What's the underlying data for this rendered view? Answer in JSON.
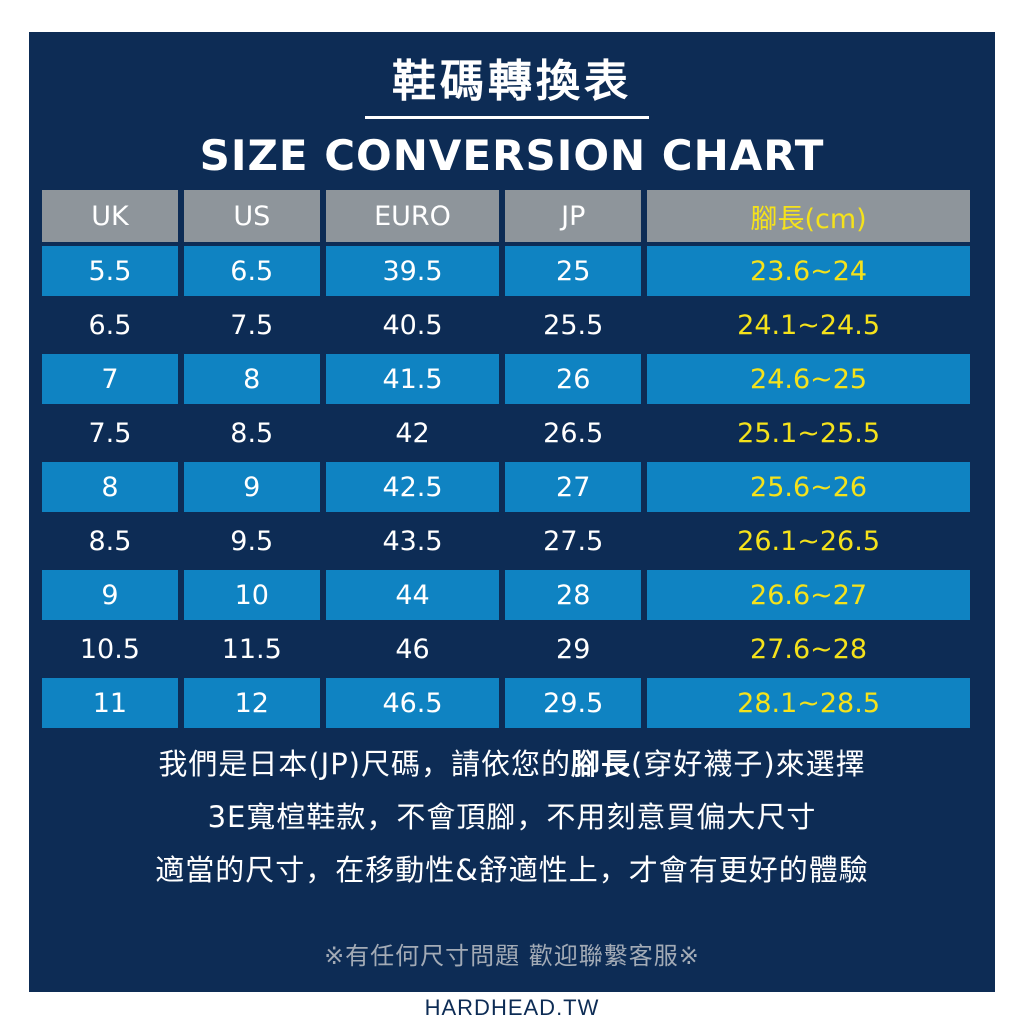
{
  "title_zh": "鞋碼轉換表",
  "title_en": "SIZE CONVERSION CHART",
  "table": {
    "headers": [
      "UK",
      "US",
      "EURO",
      "JP",
      "腳長(cm)"
    ],
    "rows": [
      [
        "5.5",
        "6.5",
        "39.5",
        "25",
        "23.6~24"
      ],
      [
        "6.5",
        "7.5",
        "40.5",
        "25.5",
        "24.1~24.5"
      ],
      [
        "7",
        "8",
        "41.5",
        "26",
        "24.6~25"
      ],
      [
        "7.5",
        "8.5",
        "42",
        "26.5",
        "25.1~25.5"
      ],
      [
        "8",
        "9",
        "42.5",
        "27",
        "25.6~26"
      ],
      [
        "8.5",
        "9.5",
        "43.5",
        "27.5",
        "26.1~26.5"
      ],
      [
        "9",
        "10",
        "44",
        "28",
        "26.6~27"
      ],
      [
        "10.5",
        "11.5",
        "46",
        "29",
        "27.6~28"
      ],
      [
        "11",
        "12",
        "46.5",
        "29.5",
        "28.1~28.5"
      ]
    ]
  },
  "note": {
    "line1_before": "我們是日本(JP)尺碼，請依您的",
    "line1_bold": "腳長",
    "line1_after": "(穿好襪子)來選擇",
    "line2": "3E寬楦鞋款，不會頂腳，不用刻意買偏大尺寸",
    "line3": "適當的尺寸，在移動性&舒適性上，才會有更好的體驗"
  },
  "service": "※有任何尺寸問題 歡迎聯繫客服※",
  "site": "HARDHEAD.TW",
  "colors": {
    "panel": "#0d2c55",
    "row_light": "#0f83c2",
    "header": "#8e959b",
    "foot_highlight": "#f5e21b"
  }
}
